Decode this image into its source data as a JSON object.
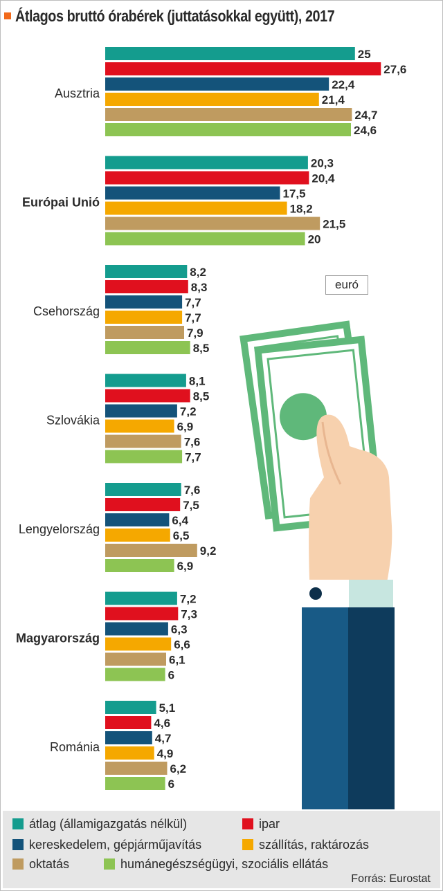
{
  "title": "Átlagos bruttó órabérek (juttatásokkal együtt), 2017",
  "unit": "euró",
  "source": "Forrás: Eurostat",
  "colors": {
    "accent": "#f26a1b",
    "series": [
      "#149c8e",
      "#e0101e",
      "#14537a",
      "#f5a800",
      "#bf9b60",
      "#8dc453"
    ]
  },
  "chart_data": {
    "type": "bar",
    "orientation": "horizontal",
    "title": "Átlagos bruttó órabérek (juttatásokkal együtt), 2017",
    "unit": "euró",
    "categories": [
      "Ausztria",
      "Európai Unió",
      "Csehország",
      "Szlovákia",
      "Lengyelország",
      "Magyarország",
      "Románia"
    ],
    "bold_categories": [
      "Európai Unió",
      "Magyarország"
    ],
    "series": [
      {
        "name": "átlag (államigazgatás nélkül)",
        "color": "#149c8e",
        "values": [
          25,
          20.3,
          8.2,
          8.1,
          7.6,
          7.2,
          5.1
        ]
      },
      {
        "name": "ipar",
        "color": "#e0101e",
        "values": [
          27.6,
          20.4,
          8.3,
          8.5,
          7.5,
          7.3,
          4.6
        ]
      },
      {
        "name": "kereskedelem, gépjárműjavítás",
        "color": "#14537a",
        "values": [
          22.4,
          17.5,
          7.7,
          7.2,
          6.4,
          6.3,
          4.7
        ]
      },
      {
        "name": "szállítás, raktározás",
        "color": "#f5a800",
        "values": [
          21.4,
          18.2,
          7.7,
          6.9,
          6.5,
          6.6,
          4.9
        ]
      },
      {
        "name": "oktatás",
        "color": "#bf9b60",
        "values": [
          24.7,
          21.5,
          7.9,
          7.6,
          9.2,
          6.1,
          6.2
        ]
      },
      {
        "name": "humánegészségügyi, szociális ellátás",
        "color": "#8dc453",
        "values": [
          24.6,
          20,
          8.5,
          7.7,
          6.9,
          6,
          6
        ]
      }
    ],
    "legend_position": "bottom",
    "grid": false
  }
}
